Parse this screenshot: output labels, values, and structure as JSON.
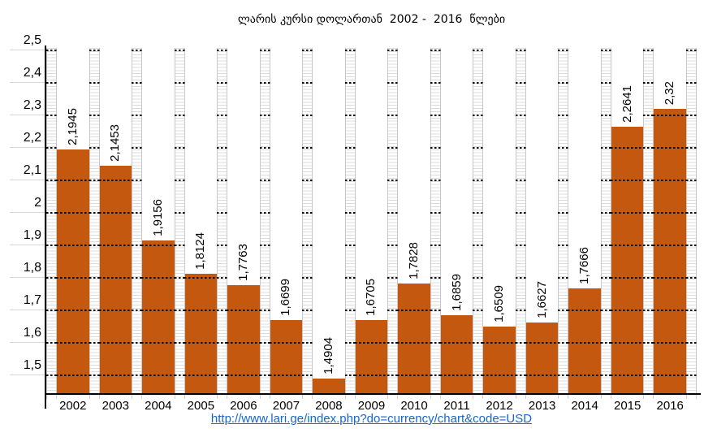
{
  "chart": {
    "title_display": "ლარის კურსი დოლართან  2002 -  2016  წლები",
    "source_link_text": "http://www.lari.ge/index.php?do=currency/chart&code=USD"
  },
  "chart_data": {
    "type": "bar",
    "title": "ლარის კურსი დოლართან 2002 - 2016 წლები",
    "xlabel": "",
    "ylabel": "",
    "categories": [
      "2002",
      "2003",
      "2004",
      "2005",
      "2006",
      "2007",
      "2008",
      "2009",
      "2010",
      "2011",
      "2012",
      "2013",
      "2014",
      "2015",
      "2016"
    ],
    "values": [
      2.1945,
      2.1453,
      1.9156,
      1.8124,
      1.7763,
      1.6699,
      1.4904,
      1.6705,
      1.7828,
      1.6859,
      1.6509,
      1.6627,
      1.7666,
      2.2641,
      2.32
    ],
    "value_labels": [
      "2,1945",
      "2,1453",
      "1,9156",
      "1,8124",
      "1,7763",
      "1,6699",
      "1,4904",
      "1,6705",
      "1,7828",
      "1,6859",
      "1,6509",
      "1,6627",
      "1,7666",
      "2,2641",
      "2,32"
    ],
    "decimal_separator": ",",
    "y_ticks": [
      {
        "value": 2.5,
        "label": "2,5"
      },
      {
        "value": 2.4,
        "label": "2,4"
      },
      {
        "value": 2.3,
        "label": "2,3"
      },
      {
        "value": 2.2,
        "label": "2,2"
      },
      {
        "value": 2.1,
        "label": "2,1"
      },
      {
        "value": 2.0,
        "label": "2"
      },
      {
        "value": 1.9,
        "label": "1,9"
      },
      {
        "value": 1.8,
        "label": "1,8"
      },
      {
        "value": 1.7,
        "label": "1,7"
      },
      {
        "value": 1.6,
        "label": "1,6"
      },
      {
        "value": 1.5,
        "label": "1,5"
      }
    ],
    "ylim": [
      1.5,
      2.5
    ],
    "y_major_unit": 0.1,
    "y_minor_unit": 0.01,
    "grid": {
      "major": "dashed black lines",
      "minor": "light gray ladder strips between bars"
    },
    "legend": "none",
    "bar_color": "#C5580F",
    "colors": {
      "bar": "#C5580F",
      "major_gridline": "#000000",
      "minor_gridline": "#dcdcdc",
      "strip_border": "#c8c8c8",
      "axis": "#000000",
      "text": "#000000",
      "link": "#1567D2"
    },
    "render": {
      "y_min": 1.4425,
      "y_max": 2.5075
    }
  }
}
